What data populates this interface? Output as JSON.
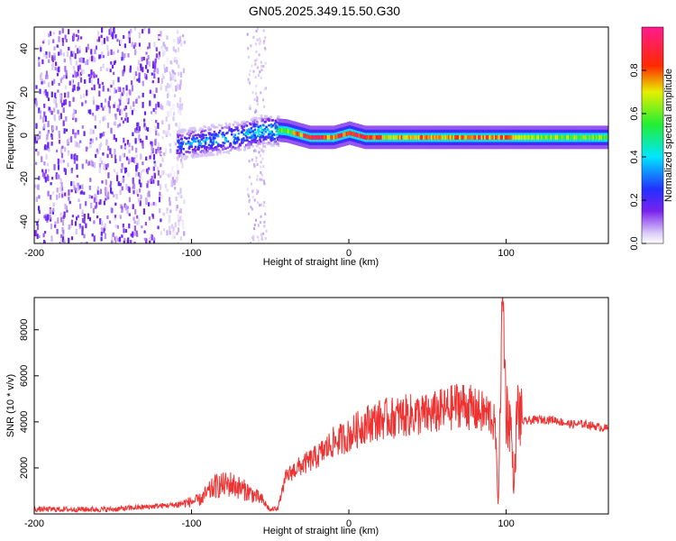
{
  "title": "GN05.2025.349.15.50.G30",
  "chart_data": [
    {
      "type": "heatmap",
      "xlabel": "Height of straight line (km)",
      "ylabel": "Frequency (Hz)",
      "xlim": [
        -200,
        165
      ],
      "ylim": [
        -50,
        50
      ],
      "xticks": [
        -200,
        -100,
        0,
        100
      ],
      "yticks": [
        -40,
        -20,
        0,
        20,
        40
      ],
      "colorbar": {
        "label": "Normalized spectral amplitude",
        "ticks": [
          0.0,
          0.2,
          0.4,
          0.6,
          0.8
        ],
        "range": [
          0,
          1
        ],
        "colormap": "white-violet-blue-cyan-green-yellow-red-magenta"
      },
      "regions": [
        {
          "x_from": -200,
          "x_to": -105,
          "freq_from": -50,
          "freq_to": 50,
          "amplitude": 0.08
        },
        {
          "x_from": -110,
          "x_to": -45,
          "freq_center": 3,
          "freq_halfwidth": 7,
          "amplitude": 0.3
        },
        {
          "x_from": -45,
          "x_to": 165,
          "freq_center": -1,
          "freq_halfwidth": 3,
          "amplitude": 0.55
        }
      ],
      "ridge": {
        "x": [
          -110,
          -90,
          -70,
          -55,
          -40,
          -25,
          -10,
          0,
          10,
          25,
          40,
          60,
          80,
          100,
          120,
          140,
          165
        ],
        "freq": [
          -4,
          -2,
          0,
          3,
          2,
          -1,
          -1,
          1,
          -1,
          -1,
          -1,
          -1,
          -1,
          -1,
          -1,
          -1,
          -1
        ],
        "amplitude": [
          0.35,
          0.4,
          0.45,
          0.5,
          0.6,
          0.9,
          0.8,
          0.85,
          0.9,
          0.7,
          0.75,
          0.7,
          0.8,
          0.75,
          0.65,
          0.6,
          0.6
        ]
      },
      "grid": false
    },
    {
      "type": "line",
      "xlabel": "Height of straight line (km)",
      "ylabel": "SNR (10 * v/v)",
      "xlim": [
        -200,
        165
      ],
      "ylim": [
        0,
        9400
      ],
      "xticks": [
        -200,
        -100,
        0,
        100
      ],
      "yticks": [
        2000,
        4000,
        6000,
        8000
      ],
      "grid": false,
      "series": [
        {
          "color": "#ee3333",
          "x": [
            -200,
            -150,
            -110,
            -95,
            -85,
            -75,
            -65,
            -55,
            -50,
            -45,
            -40,
            -35,
            -30,
            -20,
            -10,
            0,
            10,
            20,
            30,
            40,
            50,
            60,
            65,
            70,
            75,
            80,
            85,
            90,
            93,
            95,
            97,
            98,
            100,
            103,
            105,
            107,
            110,
            120,
            130,
            140,
            150,
            165
          ],
          "y": [
            200,
            200,
            400,
            600,
            1200,
            1300,
            1000,
            600,
            150,
            300,
            1600,
            1900,
            2100,
            2500,
            3100,
            3400,
            3900,
            4100,
            4200,
            4300,
            4300,
            4500,
            4600,
            4800,
            4700,
            4500,
            4400,
            4300,
            3800,
            300,
            7500,
            9400,
            4500,
            3900,
            1000,
            4600,
            4000,
            4100,
            4100,
            3900,
            3900,
            3700
          ]
        }
      ]
    }
  ]
}
